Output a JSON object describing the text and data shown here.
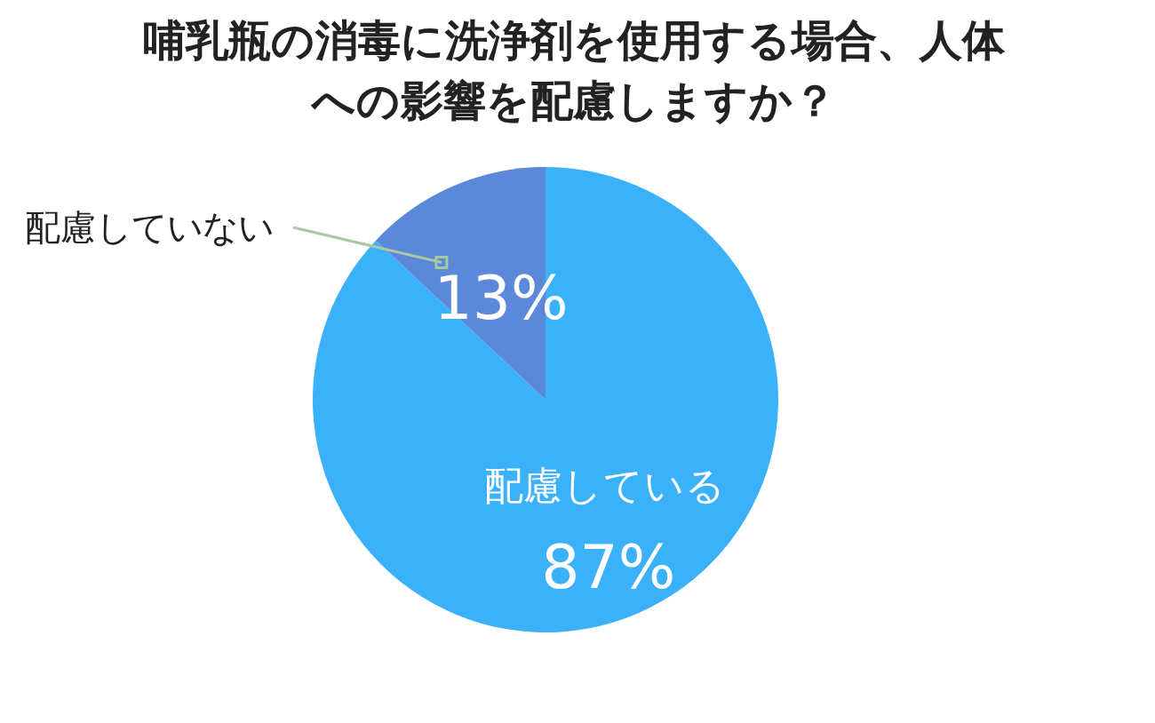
{
  "chart_data": {
    "type": "pie",
    "title": "哺乳瓶の消毒に洗浄剤を使用する場合、人体への影響を配慮しますか？",
    "categories": [
      "配慮している",
      "配慮していない"
    ],
    "values": [
      87,
      13
    ],
    "value_labels": [
      "87%",
      "13%"
    ],
    "colors": [
      "#3bb1fa",
      "#5b88d8"
    ]
  }
}
